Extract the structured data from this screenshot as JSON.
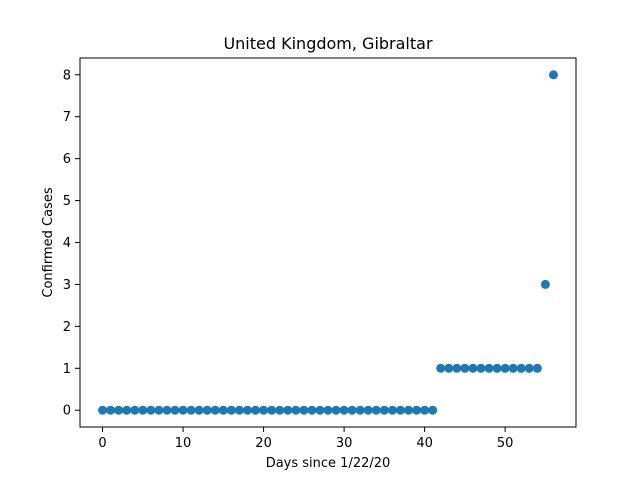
{
  "chart_data": {
    "type": "scatter",
    "title": "United Kingdom, Gibraltar",
    "xlabel": "Days since 1/22/20",
    "ylabel": "Confirmed Cases",
    "xlim": [
      -2.8,
      58.8
    ],
    "ylim": [
      -0.4,
      8.4
    ],
    "xticks": [
      0,
      10,
      20,
      30,
      40,
      50
    ],
    "yticks": [
      0,
      1,
      2,
      3,
      4,
      5,
      6,
      7,
      8
    ],
    "grid": false,
    "marker_color": "#1f77b4",
    "series": [
      {
        "x": [
          0,
          1,
          2,
          3,
          4,
          5,
          6,
          7,
          8,
          9,
          10,
          11,
          12,
          13,
          14,
          15,
          16,
          17,
          18,
          19,
          20,
          21,
          22,
          23,
          24,
          25,
          26,
          27,
          28,
          29,
          30,
          31,
          32,
          33,
          34,
          35,
          36,
          37,
          38,
          39,
          40,
          41,
          42,
          43,
          44,
          45,
          46,
          47,
          48,
          49,
          50,
          51,
          52,
          53,
          54,
          55,
          56
        ],
        "y": [
          0,
          0,
          0,
          0,
          0,
          0,
          0,
          0,
          0,
          0,
          0,
          0,
          0,
          0,
          0,
          0,
          0,
          0,
          0,
          0,
          0,
          0,
          0,
          0,
          0,
          0,
          0,
          0,
          0,
          0,
          0,
          0,
          0,
          0,
          0,
          0,
          0,
          0,
          0,
          0,
          0,
          0,
          1,
          1,
          1,
          1,
          1,
          1,
          1,
          1,
          1,
          1,
          1,
          1,
          1,
          3,
          8
        ]
      }
    ]
  }
}
